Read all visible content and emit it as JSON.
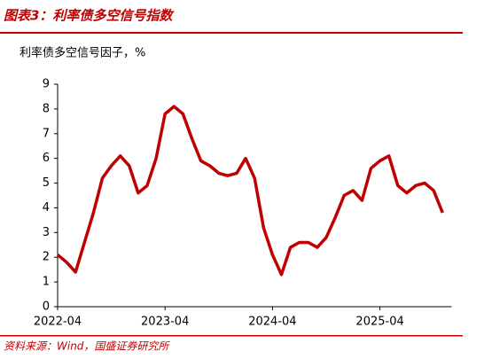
{
  "chart_data": {
    "type": "line",
    "title": "图表3：利率债多空信号指数",
    "subtitle": "利率债多空信号因子，%",
    "source": "资料来源：Wind，国盛证券研究所",
    "x": [
      "2022-04",
      "2022-05",
      "2022-06",
      "2022-07",
      "2022-08",
      "2022-09",
      "2022-10",
      "2022-11",
      "2022-12",
      "2023-01",
      "2023-02",
      "2023-03",
      "2023-04",
      "2023-05",
      "2023-06",
      "2023-07",
      "2023-08",
      "2023-09",
      "2023-10",
      "2023-11",
      "2023-12",
      "2024-01",
      "2024-02",
      "2024-03",
      "2024-04",
      "2024-05",
      "2024-06",
      "2024-07",
      "2024-08",
      "2024-09",
      "2024-10",
      "2024-11",
      "2024-12",
      "2025-01",
      "2025-02",
      "2025-03",
      "2025-04",
      "2025-05",
      "2025-06",
      "2025-07",
      "2025-08",
      "2025-09",
      "2025-10",
      "2025-11"
    ],
    "xticks": [
      "2022-04",
      "2023-04",
      "2024-04",
      "2025-04"
    ],
    "series": [
      {
        "color": "#c00000",
        "values": [
          2.1,
          1.8,
          1.4,
          2.6,
          3.8,
          5.2,
          5.7,
          6.1,
          5.7,
          4.6,
          4.9,
          6.0,
          7.8,
          8.1,
          7.8,
          6.8,
          5.9,
          5.7,
          5.4,
          5.3,
          5.4,
          6.0,
          5.2,
          3.2,
          2.1,
          1.3,
          2.4,
          2.6,
          2.6,
          2.4,
          2.8,
          3.6,
          4.5,
          4.7,
          4.3,
          5.6,
          5.9,
          6.1,
          4.9,
          4.6,
          4.9,
          5.0,
          4.7,
          3.8
        ]
      }
    ],
    "ylim": [
      0,
      9
    ],
    "yticks": [
      0,
      1,
      2,
      3,
      4,
      5,
      6,
      7,
      8,
      9
    ]
  }
}
